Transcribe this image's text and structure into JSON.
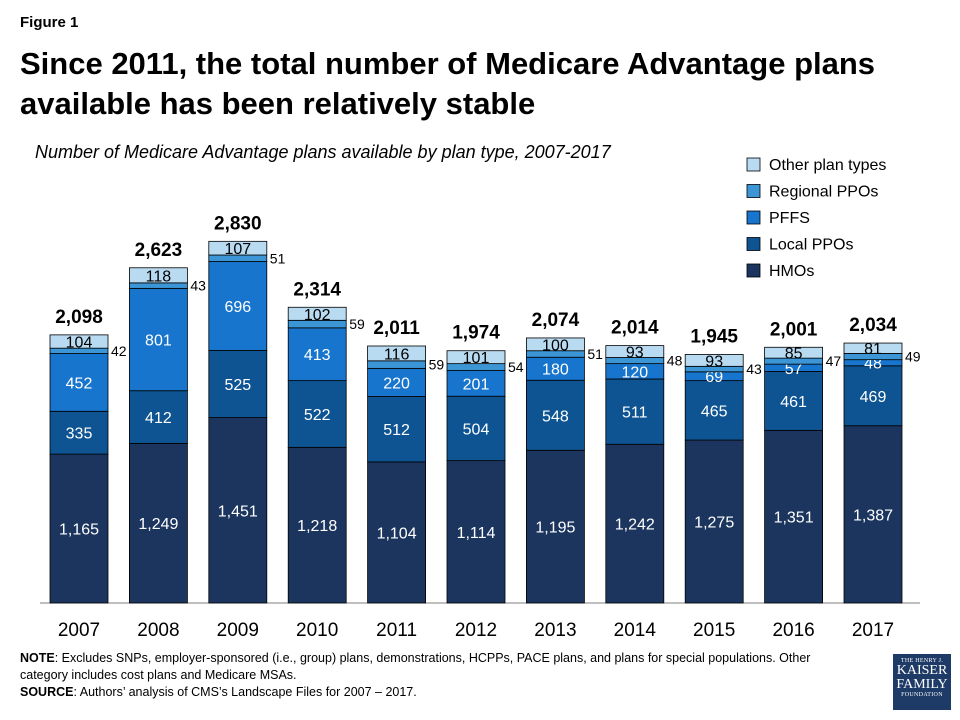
{
  "figure_label": "Figure 1",
  "title": "Since 2011, the total number of Medicare Advantage plans available has been relatively stable",
  "subtitle": "Number of Medicare Advantage plans available by plan type, 2007-2017",
  "note": {
    "note_label": "NOTE",
    "note_text": ": Excludes SNPs, employer-sponsored  (i.e., group) plans, demonstrations, HCPPs, PACE plans, and plans for special populations.  Other category includes cost plans and Medicare MSAs.",
    "source_label": "SOURCE",
    "source_text": ": Authors’ analysis of CMS’s Landscape Files for 2007 – 2017."
  },
  "logo": {
    "line1": "THE HENRY J.",
    "line2": "KAISER",
    "line3": "FAMILY",
    "line4": "FOUNDATION"
  },
  "colors": {
    "HMOs": "#1b355e",
    "Local PPOs": "#0e5492",
    "PFFS": "#1775cd",
    "Regional PPOs": "#3c96d6",
    "Other plan types": "#b9dbf2"
  },
  "chart_data": {
    "type": "bar",
    "stacked": true,
    "categories": [
      "2007",
      "2008",
      "2009",
      "2010",
      "2011",
      "2012",
      "2013",
      "2014",
      "2015",
      "2016",
      "2017"
    ],
    "series": [
      {
        "name": "HMOs",
        "values": [
          1165,
          1249,
          1451,
          1218,
          1104,
          1114,
          1195,
          1242,
          1275,
          1351,
          1387
        ]
      },
      {
        "name": "Local PPOs",
        "values": [
          335,
          412,
          525,
          522,
          512,
          504,
          548,
          511,
          465,
          461,
          469
        ]
      },
      {
        "name": "PFFS",
        "values": [
          452,
          801,
          696,
          413,
          220,
          201,
          180,
          120,
          69,
          57,
          48
        ]
      },
      {
        "name": "Regional PPOs",
        "values": [
          42,
          43,
          51,
          59,
          59,
          54,
          51,
          48,
          43,
          47,
          49
        ]
      },
      {
        "name": "Other plan types",
        "values": [
          104,
          118,
          107,
          102,
          116,
          101,
          100,
          93,
          93,
          85,
          81
        ]
      }
    ],
    "totals": [
      "2,098",
      "2,623",
      "2,830",
      "2,314",
      "2,011",
      "1,974",
      "2,074",
      "2,014",
      "1,945",
      "2,001",
      "2,034"
    ],
    "legend_order": [
      "Other plan types",
      "Regional PPOs",
      "PFFS",
      "Local PPOs",
      "HMOs"
    ],
    "legend_position": "top-right",
    "ylim": [
      0,
      3000
    ],
    "grid": false
  }
}
